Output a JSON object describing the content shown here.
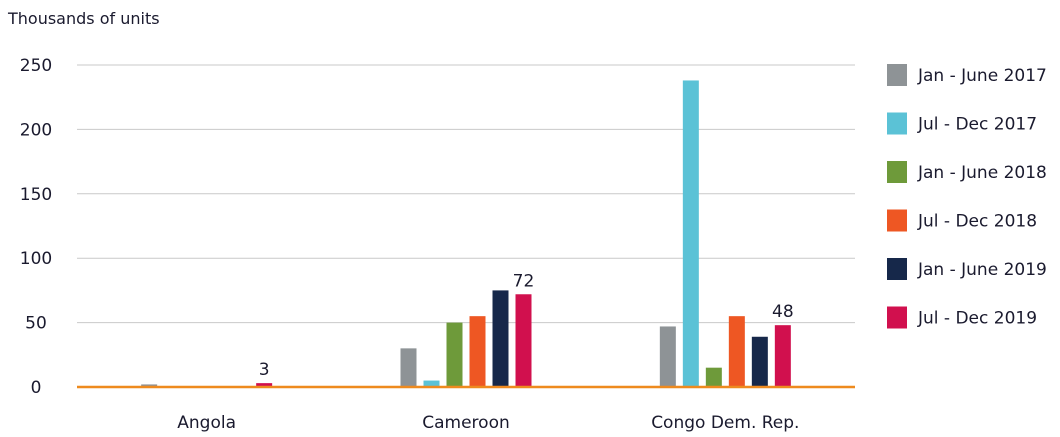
{
  "chart_data": {
    "type": "bar",
    "ylabel": "Thousands of units",
    "xlabel": "",
    "title": "",
    "ylim": [
      0,
      250
    ],
    "yticks": [
      0,
      50,
      100,
      150,
      200,
      250
    ],
    "grid": true,
    "legend_position": "right",
    "categories": [
      "Angola",
      "Cameroon",
      "Congo Dem. Rep."
    ],
    "series": [
      {
        "name": "Jan - June 2017",
        "color": "#8e9396",
        "values": [
          2,
          30,
          47
        ]
      },
      {
        "name": "Jul - Dec 2017",
        "color": "#5bc2d6",
        "values": [
          0,
          5,
          238
        ]
      },
      {
        "name": "Jan - June 2018",
        "color": "#6e9a3a",
        "values": [
          0,
          50,
          15
        ]
      },
      {
        "name": "Jul - Dec 2018",
        "color": "#ee5723",
        "values": [
          0,
          55,
          55
        ]
      },
      {
        "name": "Jan - June 2019",
        "color": "#16284a",
        "values": [
          0,
          75,
          39
        ]
      },
      {
        "name": "Jul - Dec 2019",
        "color": "#d1104e",
        "values": [
          3,
          72,
          48
        ]
      }
    ],
    "data_labels": [
      {
        "series": "Jul - Dec 2019",
        "category": "Angola",
        "text": "3"
      },
      {
        "series": "Jul - Dec 2019",
        "category": "Cameroon",
        "text": "72"
      },
      {
        "series": "Jul - Dec 2019",
        "category": "Congo Dem. Rep.",
        "text": "48"
      }
    ],
    "colors": {
      "axis": "#ee8a1e",
      "grid": "#c9c9c9"
    }
  }
}
